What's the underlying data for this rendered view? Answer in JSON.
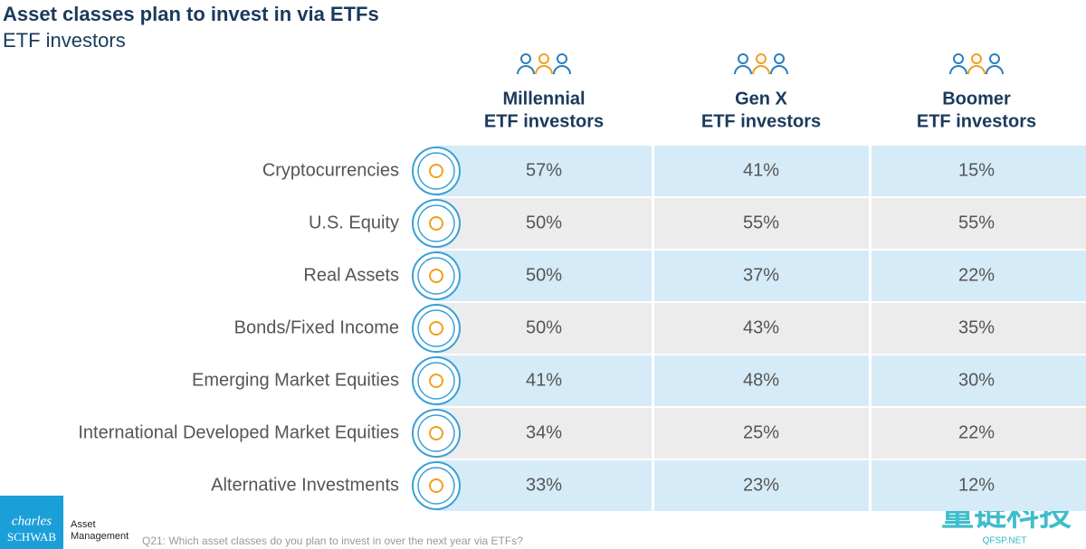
{
  "title": "Asset classes plan to invest in via ETFs",
  "subtitle": "ETF investors",
  "columns": [
    {
      "line1": "Millennial",
      "line2": "ETF investors"
    },
    {
      "line1": "Gen X",
      "line2": "ETF investors"
    },
    {
      "line1": "Boomer",
      "line2": "ETF investors"
    }
  ],
  "rows": [
    {
      "label": "Cryptocurrencies",
      "values": [
        "57%",
        "41%",
        "15%"
      ]
    },
    {
      "label": "U.S. Equity",
      "values": [
        "50%",
        "55%",
        "55%"
      ]
    },
    {
      "label": "Real Assets",
      "values": [
        "50%",
        "37%",
        "22%"
      ]
    },
    {
      "label": "Bonds/Fixed Income",
      "values": [
        "50%",
        "43%",
        "35%"
      ]
    },
    {
      "label": "Emerging Market Equities",
      "values": [
        "41%",
        "48%",
        "30%"
      ]
    },
    {
      "label": "International Developed Market Equities",
      "values": [
        "34%",
        "25%",
        "22%"
      ]
    },
    {
      "label": "Alternative Investments",
      "values": [
        "33%",
        "23%",
        "12%"
      ]
    }
  ],
  "footnote": "Q21: Which asset classes do you plan to invest in over the next year via ETFs?",
  "logo": {
    "brand1": "charles",
    "brand2": "SCHWAB",
    "unit1": "Asset",
    "unit2": "Management"
  },
  "watermark": {
    "cn": "量链科技",
    "en": "QFSP.NET"
  }
}
